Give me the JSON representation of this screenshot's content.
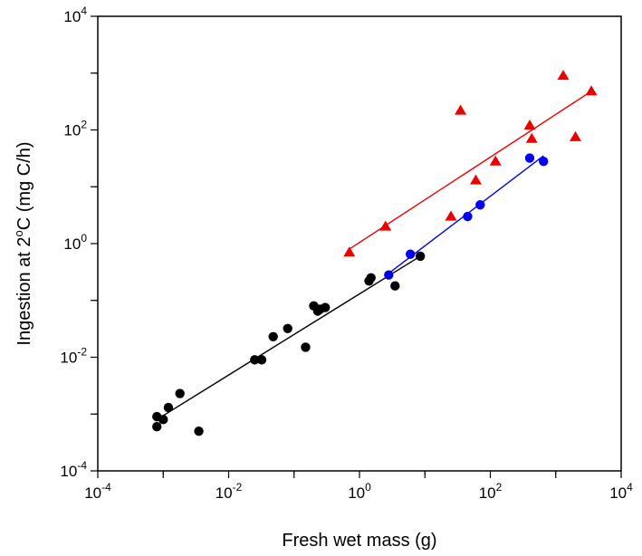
{
  "chart_data": {
    "type": "scatter",
    "xscale": "log",
    "yscale": "log",
    "xlim": [
      0.0001,
      10000
    ],
    "ylim": [
      0.0001,
      10000
    ],
    "xlabel": "Fresh wet mass (g)",
    "ylabel": {
      "pre": "Ingestion at 2",
      "sup": "o",
      "post": "C (mg C/h)"
    },
    "x_ticks": [
      {
        "value": 0.0001,
        "base": "10",
        "exp": "-4"
      },
      {
        "value": 0.01,
        "base": "10",
        "exp": "-2"
      },
      {
        "value": 1,
        "base": "10",
        "exp": "0"
      },
      {
        "value": 100,
        "base": "10",
        "exp": "2"
      },
      {
        "value": 10000,
        "base": "10",
        "exp": "4"
      }
    ],
    "y_ticks": [
      {
        "value": 0.0001,
        "base": "10",
        "exp": "-4"
      },
      {
        "value": 0.01,
        "base": "10",
        "exp": "-2"
      },
      {
        "value": 1,
        "base": "10",
        "exp": "0"
      },
      {
        "value": 100,
        "base": "10",
        "exp": "2"
      },
      {
        "value": 10000,
        "base": "10",
        "exp": "4"
      }
    ],
    "grid": false,
    "series": [
      {
        "color": "#000000",
        "marker": "circle",
        "points": [
          [
            0.0008,
            0.0009
          ],
          [
            0.0008,
            0.0006
          ],
          [
            0.001,
            0.0008
          ],
          [
            0.0012,
            0.0013
          ],
          [
            0.0018,
            0.0023
          ],
          [
            0.0035,
            0.0005
          ],
          [
            0.025,
            0.009
          ],
          [
            0.032,
            0.009
          ],
          [
            0.048,
            0.023
          ],
          [
            0.08,
            0.032
          ],
          [
            0.15,
            0.015
          ],
          [
            0.2,
            0.08
          ],
          [
            0.23,
            0.065
          ],
          [
            0.25,
            0.07
          ],
          [
            0.3,
            0.075
          ],
          [
            1.4,
            0.22
          ],
          [
            1.5,
            0.25
          ],
          [
            3.5,
            0.18
          ],
          [
            8.5,
            0.6
          ]
        ],
        "fit": [
          [
            0.0008,
            0.0008
          ],
          [
            8.5,
            0.6
          ]
        ]
      },
      {
        "color": "#0000ee",
        "marker": "circle",
        "points": [
          [
            2.8,
            0.28
          ],
          [
            6,
            0.65
          ],
          [
            45,
            3
          ],
          [
            70,
            4.8
          ],
          [
            400,
            32
          ],
          [
            650,
            28
          ]
        ],
        "fit": [
          [
            2.8,
            0.3
          ],
          [
            650,
            35
          ]
        ]
      },
      {
        "color": "#ee0000",
        "marker": "triangle",
        "points": [
          [
            0.7,
            0.7
          ],
          [
            2.5,
            2
          ],
          [
            25,
            3
          ],
          [
            35,
            220
          ],
          [
            60,
            13
          ],
          [
            120,
            28
          ],
          [
            400,
            120
          ],
          [
            430,
            70
          ],
          [
            1300,
            900
          ],
          [
            2000,
            75
          ],
          [
            3500,
            480
          ]
        ],
        "fit": [
          [
            0.7,
            0.8
          ],
          [
            3500,
            480
          ]
        ]
      }
    ]
  }
}
